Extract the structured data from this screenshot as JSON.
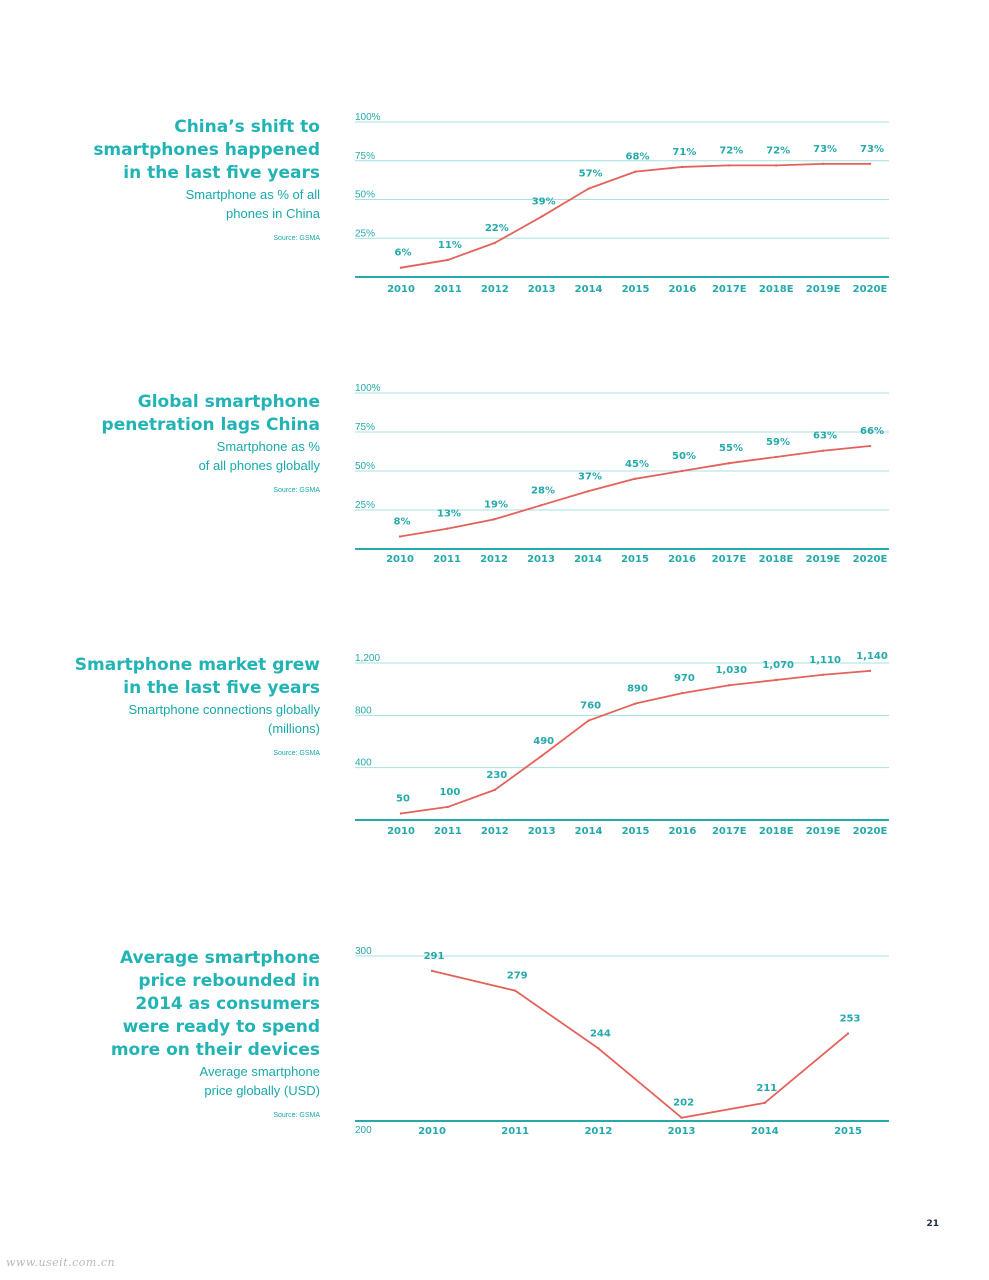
{
  "panels": [
    {
      "title_lines": [
        "China’s shift to",
        "smartphones happened",
        "in the last five years"
      ],
      "subtitle_lines": [
        "Smartphone as % of all",
        "phones in China"
      ],
      "source": "Source: GSMA"
    },
    {
      "title_lines": [
        "Global smartphone",
        "penetration lags China"
      ],
      "subtitle_lines": [
        "Smartphone as %",
        "of all phones globally"
      ],
      "source": "Source: GSMA"
    },
    {
      "title_lines": [
        "Smartphone market grew",
        "in the last five years"
      ],
      "subtitle_lines": [
        "Smartphone connections globally",
        "(millions)"
      ],
      "source": "Source: GSMA"
    },
    {
      "title_lines": [
        "Average smartphone",
        "price rebounded in",
        "2014 as consumers",
        "were ready to spend",
        "more on their devices"
      ],
      "subtitle_lines": [
        "Average smartphone",
        "price globally (USD)"
      ],
      "source": "Source: GSMA"
    }
  ],
  "chart_data": [
    {
      "type": "line",
      "title": "China’s shift to smartphones happened in the last five years",
      "ylabel": "Smartphone as % of all phones in China",
      "x": [
        "2010",
        "2011",
        "2012",
        "2013",
        "2014",
        "2015",
        "2016",
        "2017E",
        "2018E",
        "2019E",
        "2020E"
      ],
      "values": [
        6,
        11,
        22,
        39,
        57,
        68,
        71,
        72,
        72,
        73,
        73
      ],
      "data_labels": [
        "6%",
        "11%",
        "22%",
        "39%",
        "57%",
        "68%",
        "71%",
        "72%",
        "72%",
        "73%",
        "73%"
      ],
      "yticks": [
        25,
        50,
        75,
        100
      ],
      "ytick_labels": [
        "25%",
        "50%",
        "75%",
        "100%"
      ],
      "ylim": [
        0,
        100
      ],
      "grid": true,
      "line_color": "#e3625a",
      "grid_color": "#a9dfe0",
      "axis_color": "#25a9ab",
      "source": "Source: GSMA"
    },
    {
      "type": "line",
      "title": "Global smartphone penetration lags China",
      "ylabel": "Smartphone as % of all phones globally",
      "x": [
        "2010",
        "2011",
        "2012",
        "2013",
        "2014",
        "2015",
        "2016",
        "2017E",
        "2018E",
        "2019E",
        "2020E"
      ],
      "values": [
        8,
        13,
        19,
        28,
        37,
        45,
        50,
        55,
        59,
        63,
        66
      ],
      "data_labels": [
        "8%",
        "13%",
        "19%",
        "28%",
        "37%",
        "45%",
        "50%",
        "55%",
        "59%",
        "63%",
        "66%"
      ],
      "yticks": [
        25,
        50,
        75,
        100
      ],
      "ytick_labels": [
        "25%",
        "50%",
        "75%",
        "100%"
      ],
      "ylim": [
        0,
        100
      ],
      "grid": true,
      "line_color": "#e3625a",
      "grid_color": "#a9dfe0",
      "axis_color": "#25a9ab",
      "source": "Source: GSMA"
    },
    {
      "type": "line",
      "title": "Smartphone market grew in the last five years",
      "ylabel": "Smartphone connections globally (millions)",
      "x": [
        "2010",
        "2011",
        "2012",
        "2013",
        "2014",
        "2015",
        "2016",
        "2017E",
        "2018E",
        "2019E",
        "2020E"
      ],
      "values": [
        50,
        100,
        230,
        490,
        760,
        890,
        970,
        1030,
        1070,
        1110,
        1140
      ],
      "data_labels": [
        "50",
        "100",
        "230",
        "490",
        "760",
        "890",
        "970",
        "1,030",
        "1,070",
        "1,110",
        "1,140"
      ],
      "yticks": [
        400,
        800,
        1200
      ],
      "ytick_labels": [
        "400",
        "800",
        "1,200"
      ],
      "ylim": [
        0,
        1200
      ],
      "grid": true,
      "line_color": "#e3625a",
      "grid_color": "#a9dfe0",
      "axis_color": "#25a9ab",
      "source": "Source: GSMA"
    },
    {
      "type": "line",
      "title": "Average smartphone price rebounded in 2014 as consumers were ready to spend more on their devices",
      "ylabel": "Average smartphone price globally (USD)",
      "x": [
        "2010",
        "2011",
        "2012",
        "2013",
        "2014",
        "2015"
      ],
      "values": [
        291,
        279,
        244,
        202,
        211,
        253
      ],
      "data_labels": [
        "291",
        "279",
        "244",
        "202",
        "211",
        "253"
      ],
      "yticks": [
        200,
        300
      ],
      "ytick_labels": [
        "200",
        "300"
      ],
      "ylim": [
        200,
        300
      ],
      "grid": true,
      "line_color": "#e3625a",
      "grid_color": "#a9dfe0",
      "axis_color": "#25a9ab",
      "source": "Source: GSMA"
    }
  ],
  "page_number": "21",
  "watermark": "www.useit.com.cn"
}
